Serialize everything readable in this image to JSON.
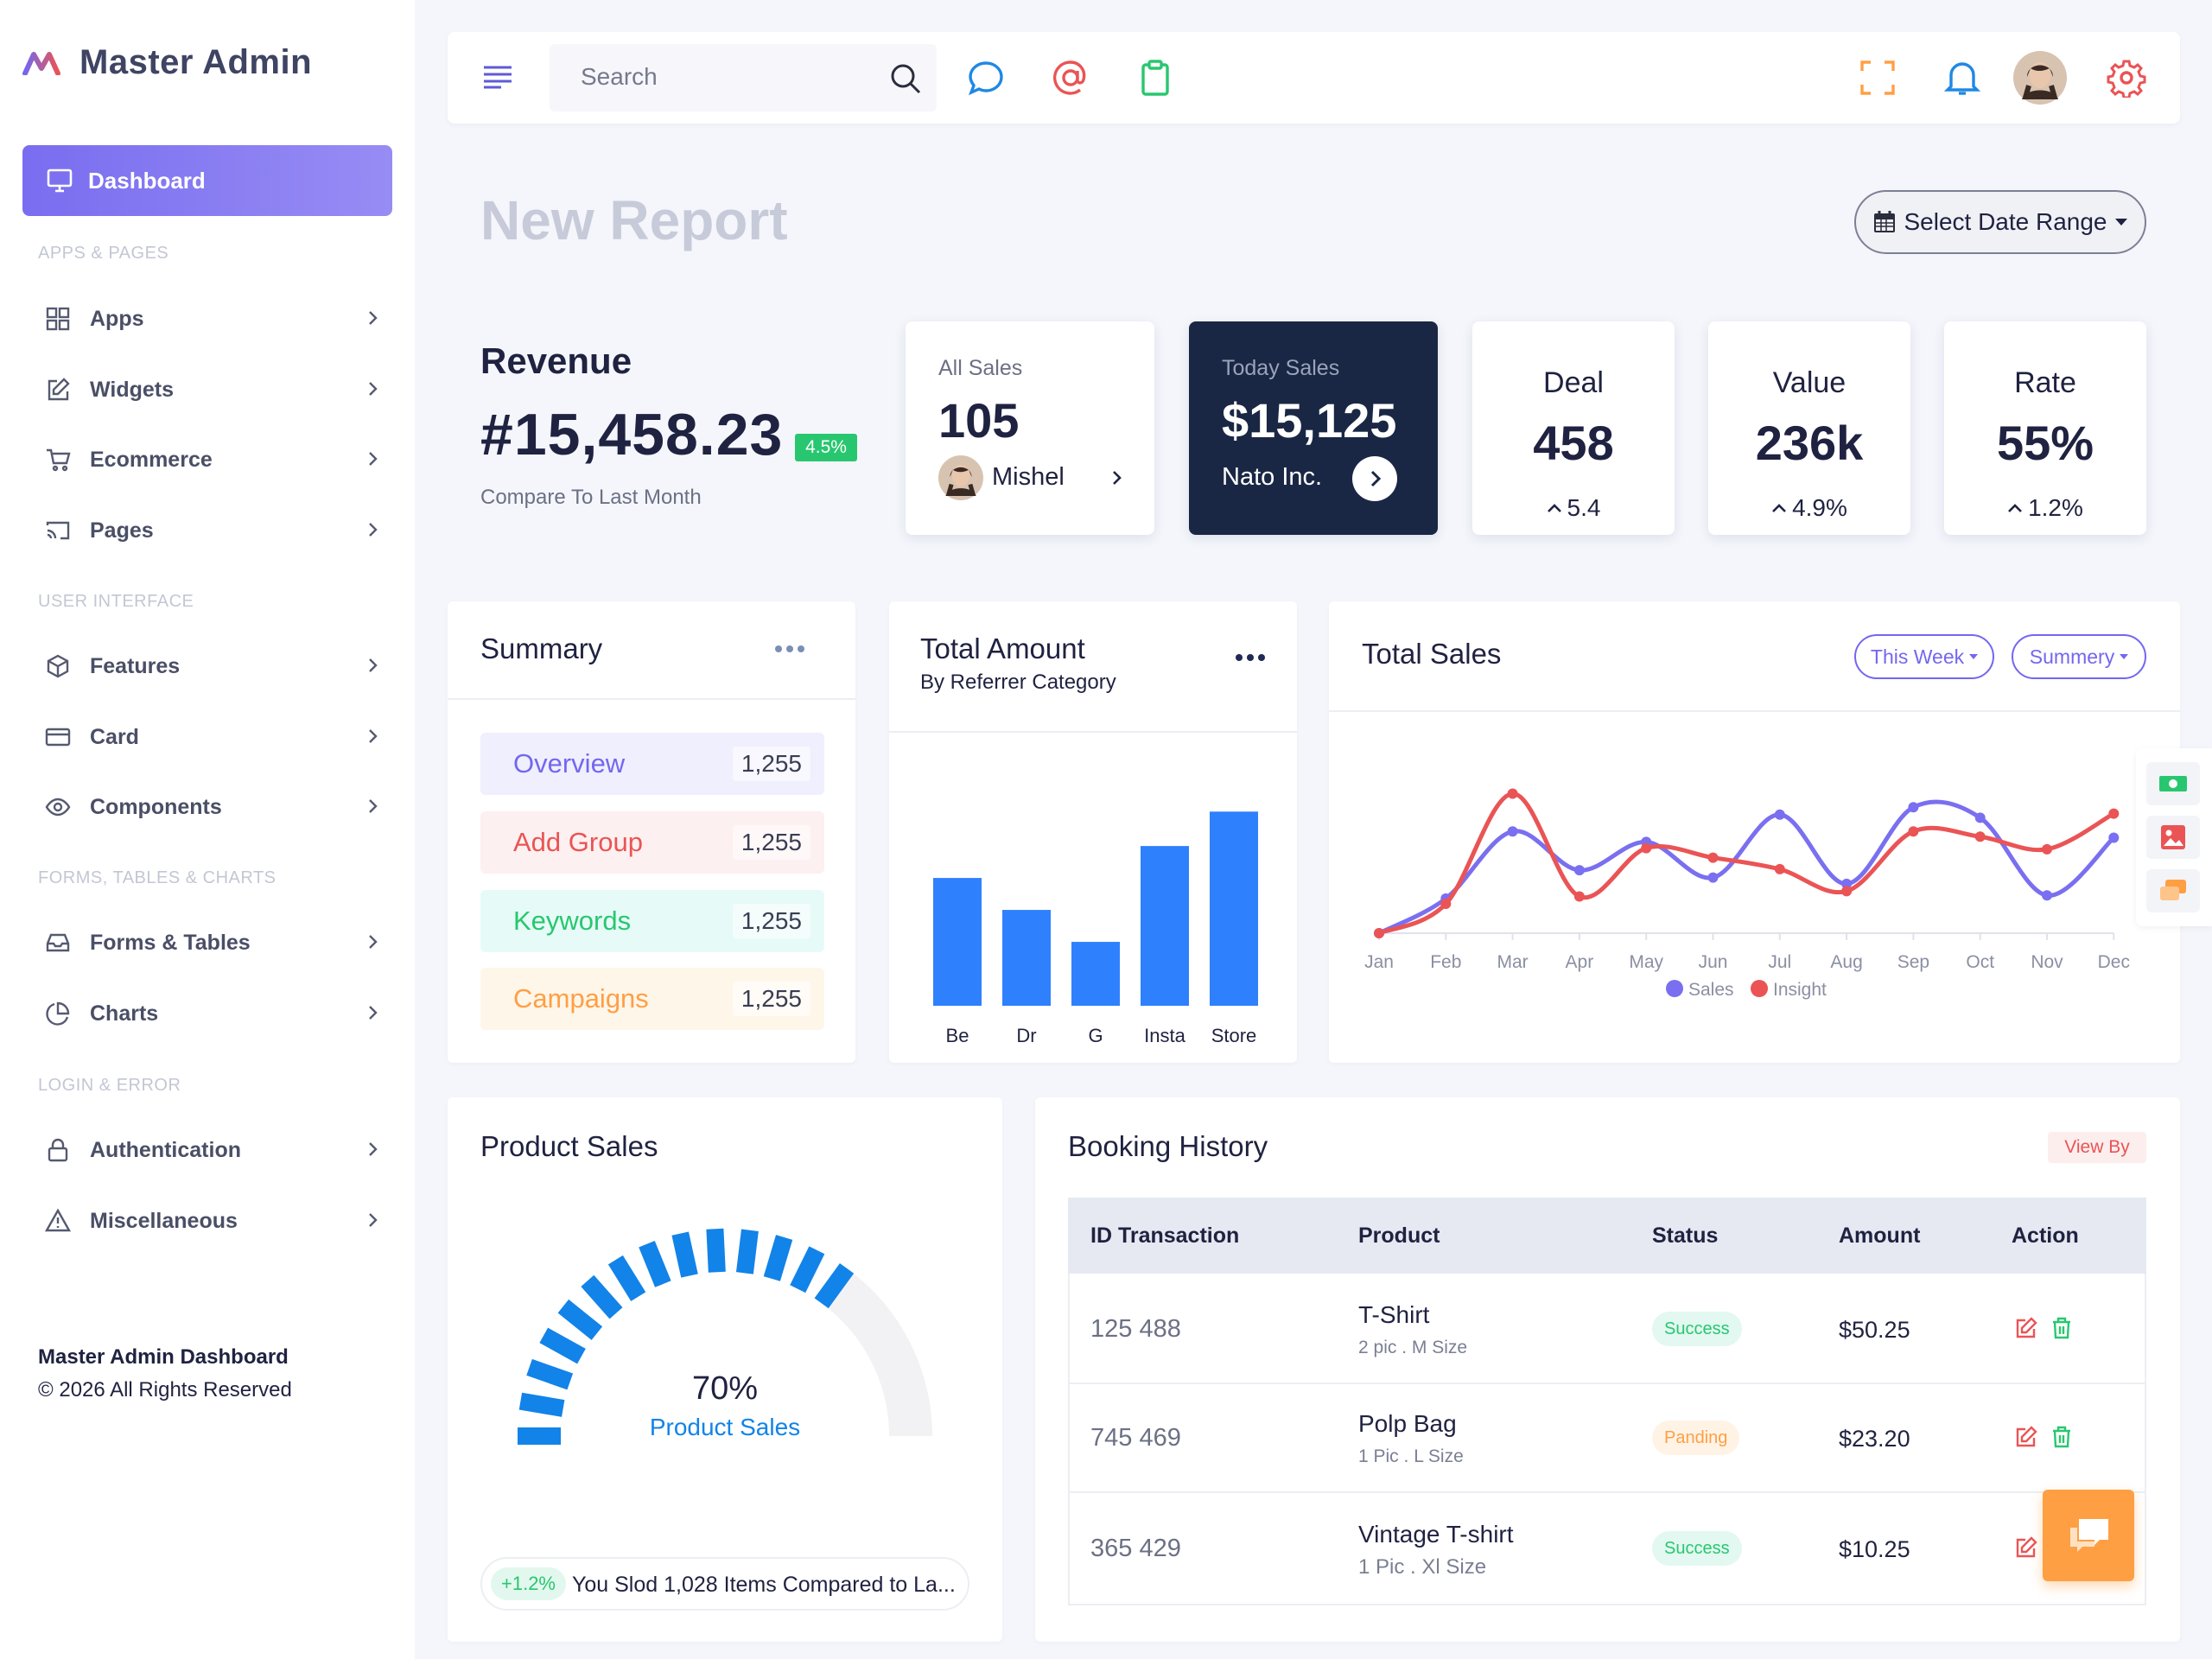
{
  "brand": {
    "name": "Master Admin"
  },
  "sidebar": {
    "active": "Dashboard",
    "sections": [
      "APPS & PAGES",
      "USER INTERFACE",
      "FORMS, TABLES & CHARTS",
      "LOGIN & ERROR"
    ],
    "items": [
      "Apps",
      "Widgets",
      "Ecommerce",
      "Pages",
      "Features",
      "Card",
      "Components",
      "Forms & Tables",
      "Charts",
      "Authentication",
      "Miscellaneous"
    ],
    "footer_title": "Master Admin Dashboard",
    "footer_copy": "© 2026 All Rights Reserved"
  },
  "header": {
    "search_placeholder": "Search"
  },
  "page": {
    "title": "New Report",
    "date_range_label": "Select Date Range"
  },
  "revenue": {
    "label": "Revenue",
    "value": "#15,458.23",
    "change": "4.5%",
    "compare": "Compare To Last Month"
  },
  "all_sales": {
    "label": "All Sales",
    "value": "105",
    "person": "Mishel"
  },
  "today_sales": {
    "label": "Today Sales",
    "value": "$15,125",
    "company": "Nato Inc."
  },
  "stats": [
    {
      "title": "Deal",
      "value": "458",
      "change": "5.4"
    },
    {
      "title": "Value",
      "value": "236k",
      "change": "4.9%"
    },
    {
      "title": "Rate",
      "value": "55%",
      "change": "1.2%"
    }
  ],
  "summary": {
    "title": "Summary",
    "rows": [
      {
        "label": "Overview",
        "count": "1,255",
        "color": "#7367f0",
        "bg": "#f0effd"
      },
      {
        "label": "Add Group",
        "count": "1,255",
        "color": "#ea5455",
        "bg": "#fdf0f0"
      },
      {
        "label": "Keywords",
        "count": "1,255",
        "color": "#28c76f",
        "bg": "#e6fbf8"
      },
      {
        "label": "Campaigns",
        "count": "1,255",
        "color": "#ff9f43",
        "bg": "#fff6ea"
      }
    ]
  },
  "total_amount": {
    "title": "Total Amount",
    "subtitle": "By Referrer Category"
  },
  "total_sales": {
    "title": "Total Sales",
    "filter1": "This Week",
    "filter2": "Summery"
  },
  "product_sales": {
    "title": "Product Sales",
    "percent": "70%",
    "label": "Product Sales",
    "change": "+1.2%",
    "footer": "You Slod 1,028 Items Compared to La..."
  },
  "booking": {
    "title": "Booking History",
    "view_by": "View By",
    "columns": [
      "ID Transaction",
      "Product",
      "Status",
      "Amount",
      "Action"
    ],
    "rows": [
      {
        "id": "125 488",
        "product": "T-Shirt",
        "detail": "2 pic . M Size",
        "status": "Success",
        "amount": "$50.25"
      },
      {
        "id": "745 469",
        "product": "Polp Bag",
        "detail": "1 Pic . L Size",
        "status": "Panding",
        "amount": "$23.20"
      },
      {
        "id": "365 429",
        "product": "Vintage T-shirt",
        "detail": "1 Pic . Xl Size",
        "status": "Success",
        "amount": "$10.25"
      }
    ]
  },
  "chart_data": [
    {
      "type": "bar",
      "title": "Total Amount",
      "categories": [
        "Be",
        "Dr",
        "G",
        "Insta",
        "Store"
      ],
      "values": [
        52,
        39,
        26,
        65,
        79
      ],
      "ylim": [
        0,
        90
      ],
      "color": "#2f80fd"
    },
    {
      "type": "line",
      "title": "Total Sales",
      "x": [
        "Jan",
        "Feb",
        "Mar",
        "Apr",
        "May",
        "Jun",
        "Jul",
        "Aug",
        "Sep",
        "Oct",
        "Nov",
        "Dec"
      ],
      "series": [
        {
          "name": "Sales",
          "color": "#7a6ff0",
          "values": [
            0,
            33,
            97,
            60,
            87,
            53,
            113,
            47,
            120,
            110,
            36,
            91
          ]
        },
        {
          "name": "Insight",
          "color": "#ea5455",
          "values": [
            0,
            28,
            133,
            35,
            81,
            72,
            61,
            40,
            97,
            92,
            80,
            114
          ]
        }
      ],
      "ylim": [
        0,
        140
      ],
      "legend": "bottom"
    },
    {
      "type": "gauge",
      "title": "Product Sales",
      "value": 70,
      "color": "#1283e8"
    }
  ]
}
